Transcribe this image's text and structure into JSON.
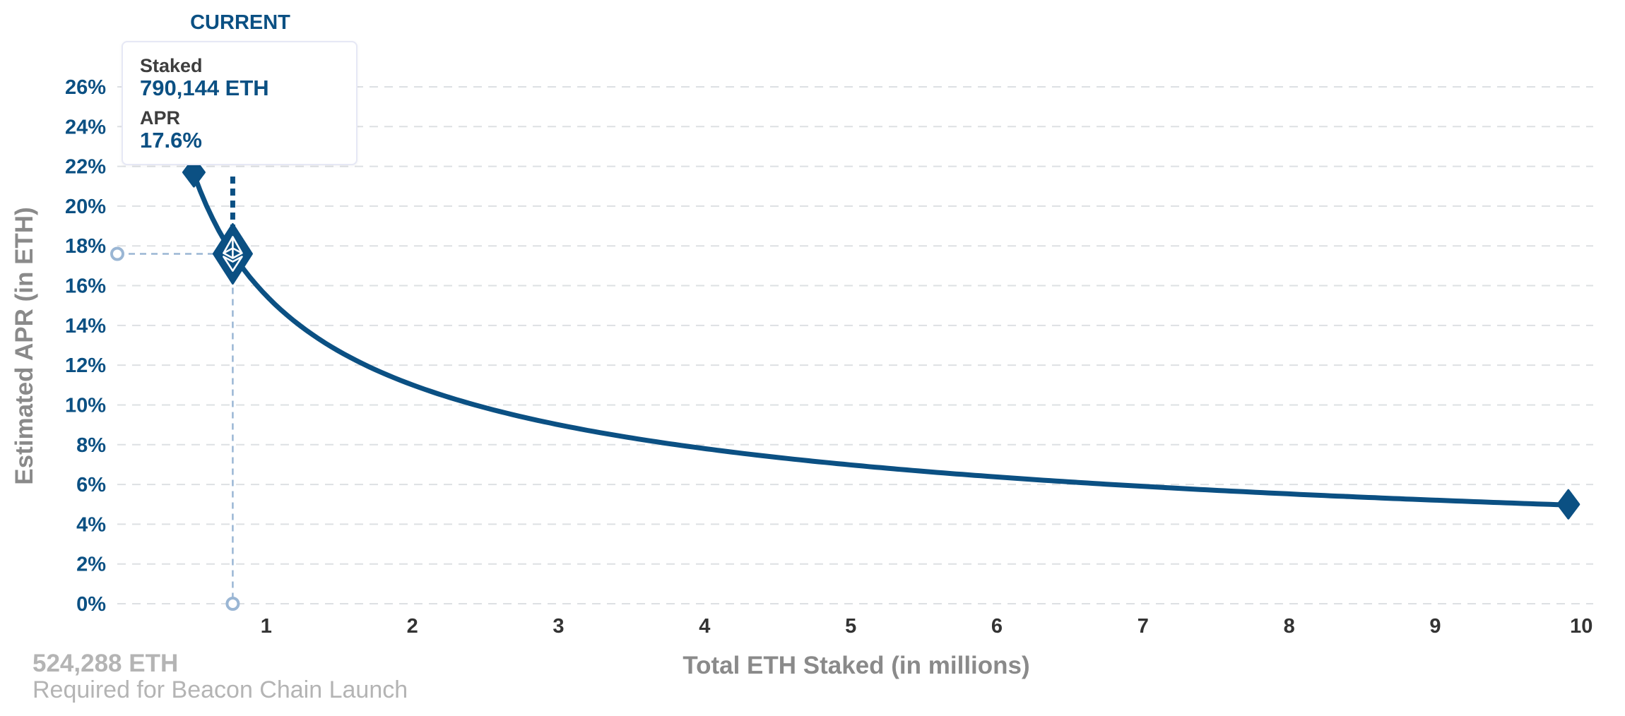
{
  "chart_data": {
    "type": "line",
    "xlabel": "Total ETH Staked  (in millions)",
    "ylabel": "Estimated APR (in ETH)",
    "x_ticks": [
      "1",
      "2",
      "3",
      "4",
      "5",
      "6",
      "7",
      "8",
      "9",
      "10"
    ],
    "y_ticks": [
      "0%",
      "2%",
      "4%",
      "6%",
      "8%",
      "10%",
      "12%",
      "14%",
      "16%",
      "18%",
      "20%",
      "22%",
      "24%",
      "26%"
    ],
    "xlim": [
      0,
      10.1
    ],
    "ylim": [
      0,
      26
    ],
    "grid": true,
    "series": [
      {
        "x": [
          0.524288,
          0.6,
          0.790144,
          1,
          1.5,
          2,
          3,
          4,
          5,
          6,
          7,
          8,
          9,
          9.93
        ],
        "y": [
          21.7,
          20.3,
          17.6,
          15.7,
          12.8,
          11.1,
          9.0,
          7.8,
          7.0,
          6.4,
          5.9,
          5.5,
          5.2,
          5.0
        ]
      }
    ],
    "current": {
      "x": 0.790144,
      "y": 17.6,
      "label": "CURRENT"
    },
    "launch_point": {
      "x": 0.524288,
      "y": 21.7
    },
    "end_point": {
      "x": 9.93,
      "y": 5.0
    },
    "colors": {
      "line": "#0b5083",
      "guide": "#9ab6d4",
      "grid": "#dde0e3",
      "axis_title": "#8a8a8a"
    }
  },
  "tooltip": {
    "staked_label": "Staked",
    "staked_value": "790,144 ETH",
    "apr_label": "APR",
    "apr_value": "17.6%"
  },
  "footnote": {
    "amount": "524,288 ETH",
    "caption": "Required for Beacon Chain Launch"
  },
  "icons": {
    "current_marker": "ethereum-diamond-icon"
  }
}
